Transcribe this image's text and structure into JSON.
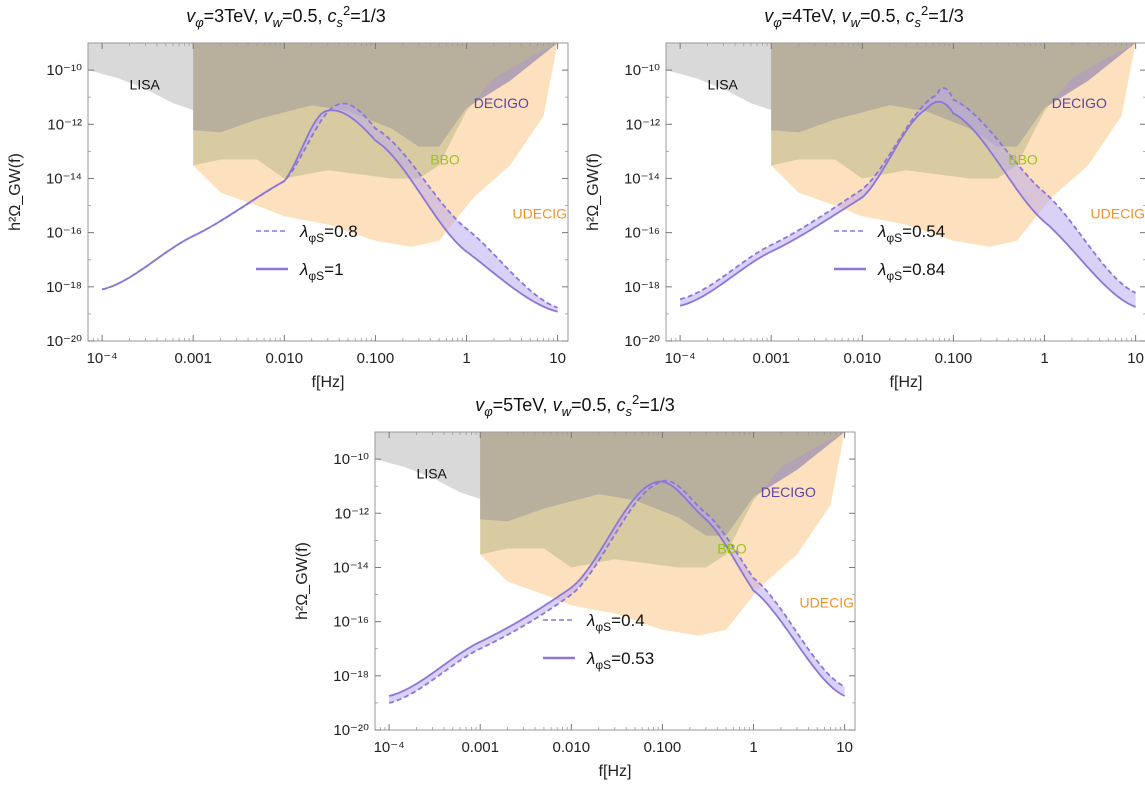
{
  "chart_data": [
    {
      "type": "line",
      "title": "v_φ=3TeV, v_w=0.5, c_s²=1/3",
      "title_parts": {
        "v_sub": "φ",
        "v_val": "=3TeV,",
        "w_sub": "w",
        "w_val": "=0.5,",
        "c_sub": "s",
        "c_sup": "2",
        "c_val": "=1/3"
      },
      "xlabel": "f[Hz]",
      "ylabel": "h²Ω_GW(f)",
      "xscale": "log",
      "yscale": "log",
      "xlim": [
        7e-05,
        13
      ],
      "ylim": [
        1e-20,
        1e-09
      ],
      "xticks": [
        "10⁻⁴",
        "0.001",
        "0.010",
        "0.100",
        "1",
        "10"
      ],
      "yticks": [
        "10⁻²⁰",
        "10⁻¹⁸",
        "10⁻¹⁶",
        "10⁻¹⁴",
        "10⁻¹²",
        "10⁻¹⁰"
      ],
      "region_labels": [
        "LISA",
        "DECIGO",
        "BBO",
        "UDECIGO"
      ],
      "series": [
        {
          "name": "λ_φS=0.8",
          "label_sub": "φS",
          "label_val": "=0.8",
          "style": "dashed",
          "color": "#8e76d6",
          "x": [
            0.0001,
            0.001,
            0.01,
            0.037,
            0.1,
            1,
            10
          ],
          "y": [
            8e-19,
            7.5e-17,
            8e-15,
            5e-12,
            7e-13,
            1.4e-16,
            1.7e-19
          ]
        },
        {
          "name": "λ_φS=1",
          "label_sub": "φS",
          "label_val": "=1",
          "style": "solid",
          "color": "#8e76d6",
          "x": [
            0.0001,
            0.001,
            0.01,
            0.028,
            0.1,
            1,
            10
          ],
          "y": [
            8e-19,
            7.5e-17,
            8e-15,
            3e-12,
            2.5e-13,
            2e-17,
            1.2e-19
          ]
        }
      ],
      "legend_placement": "center-left"
    },
    {
      "type": "line",
      "title": "v_φ=4TeV, v_w=0.5, c_s²=1/3",
      "title_parts": {
        "v_sub": "φ",
        "v_val": "=4TeV,",
        "w_sub": "w",
        "w_val": "=0.5,",
        "c_sub": "s",
        "c_sup": "2",
        "c_val": "=1/3"
      },
      "xlabel": "f[Hz]",
      "ylabel": "h²Ω_GW(f)",
      "xscale": "log",
      "yscale": "log",
      "xlim": [
        7e-05,
        13
      ],
      "ylim": [
        1e-20,
        1e-09
      ],
      "xticks": [
        "10⁻⁴",
        "0.001",
        "0.010",
        "0.100",
        "1",
        "10"
      ],
      "yticks": [
        "10⁻²⁰",
        "10⁻¹⁸",
        "10⁻¹⁶",
        "10⁻¹⁴",
        "10⁻¹²",
        "10⁻¹⁰"
      ],
      "region_labels": [
        "LISA",
        "DECIGO",
        "BBO",
        "UDECIGO"
      ],
      "series": [
        {
          "name": "λ_φS=0.54",
          "label_sub": "φS",
          "label_val": "=0.54",
          "style": "dashed",
          "color": "#8e76d6",
          "x": [
            0.0001,
            0.001,
            0.01,
            0.065,
            0.1,
            1,
            10
          ],
          "y": [
            3.5e-19,
            3.5e-17,
            4e-15,
            1.2e-11,
            8e-12,
            3e-15,
            6e-19
          ]
        },
        {
          "name": "λ_φS=0.84",
          "label_sub": "φS",
          "label_val": "=0.84",
          "style": "solid",
          "color": "#8e76d6",
          "x": [
            0.0001,
            0.001,
            0.01,
            0.05,
            0.1,
            1,
            10
          ],
          "y": [
            2e-19,
            2e-17,
            2e-15,
            3.5e-12,
            2.5e-12,
            2.5e-16,
            1.8e-19
          ]
        }
      ],
      "legend_placement": "center-left"
    },
    {
      "type": "line",
      "title": "v_φ=5TeV, v_w=0.5, c_s²=1/3",
      "title_parts": {
        "v_sub": "φ",
        "v_val": "=5TeV,",
        "w_sub": "w",
        "w_val": "=0.5,",
        "c_sub": "s",
        "c_sup": "2",
        "c_val": "=1/3"
      },
      "xlabel": "f[Hz]",
      "ylabel": "h²Ω_GW(f)",
      "xscale": "log",
      "yscale": "log",
      "xlim": [
        7e-05,
        13
      ],
      "ylim": [
        1e-20,
        1e-09
      ],
      "xticks": [
        "10⁻⁴",
        "0.001",
        "0.010",
        "0.100",
        "1",
        "10"
      ],
      "yticks": [
        "10⁻²⁰",
        "10⁻¹⁸",
        "10⁻¹⁶",
        "10⁻¹⁴",
        "10⁻¹²",
        "10⁻¹⁰"
      ],
      "region_labels": [
        "LISA",
        "DECIGO",
        "BBO",
        "UDECIGO"
      ],
      "series": [
        {
          "name": "λ_φS=0.4",
          "label_sub": "φS",
          "label_val": "=0.4",
          "style": "dashed",
          "color": "#8e76d6",
          "x": [
            0.0001,
            0.001,
            0.01,
            0.09,
            0.3,
            1,
            10
          ],
          "y": [
            1e-19,
            1e-17,
            1e-15,
            1.3e-11,
            1e-12,
            4e-15,
            4e-19
          ]
        },
        {
          "name": "λ_φS=0.53",
          "label_sub": "φS",
          "label_val": "=0.53",
          "style": "solid",
          "color": "#8e76d6",
          "x": [
            0.0001,
            0.001,
            0.01,
            0.08,
            0.3,
            1,
            10
          ],
          "y": [
            1.8e-19,
            1.8e-17,
            1.8e-15,
            1.3e-11,
            6e-13,
            1.4e-15,
            1.8e-19
          ]
        }
      ],
      "legend_placement": "center-left"
    }
  ],
  "colors": {
    "lisa": "#d9d9d9",
    "decigo": "#9b8fb2",
    "bbo": "#bcb98a",
    "udecigo": "#fde0bd",
    "curve": "#8e76d6",
    "curve_fill": "#b9abef",
    "decigo_label": "#5b45a8",
    "bbo_label": "#9ac41e",
    "udecigo_label": "#f2922a"
  }
}
